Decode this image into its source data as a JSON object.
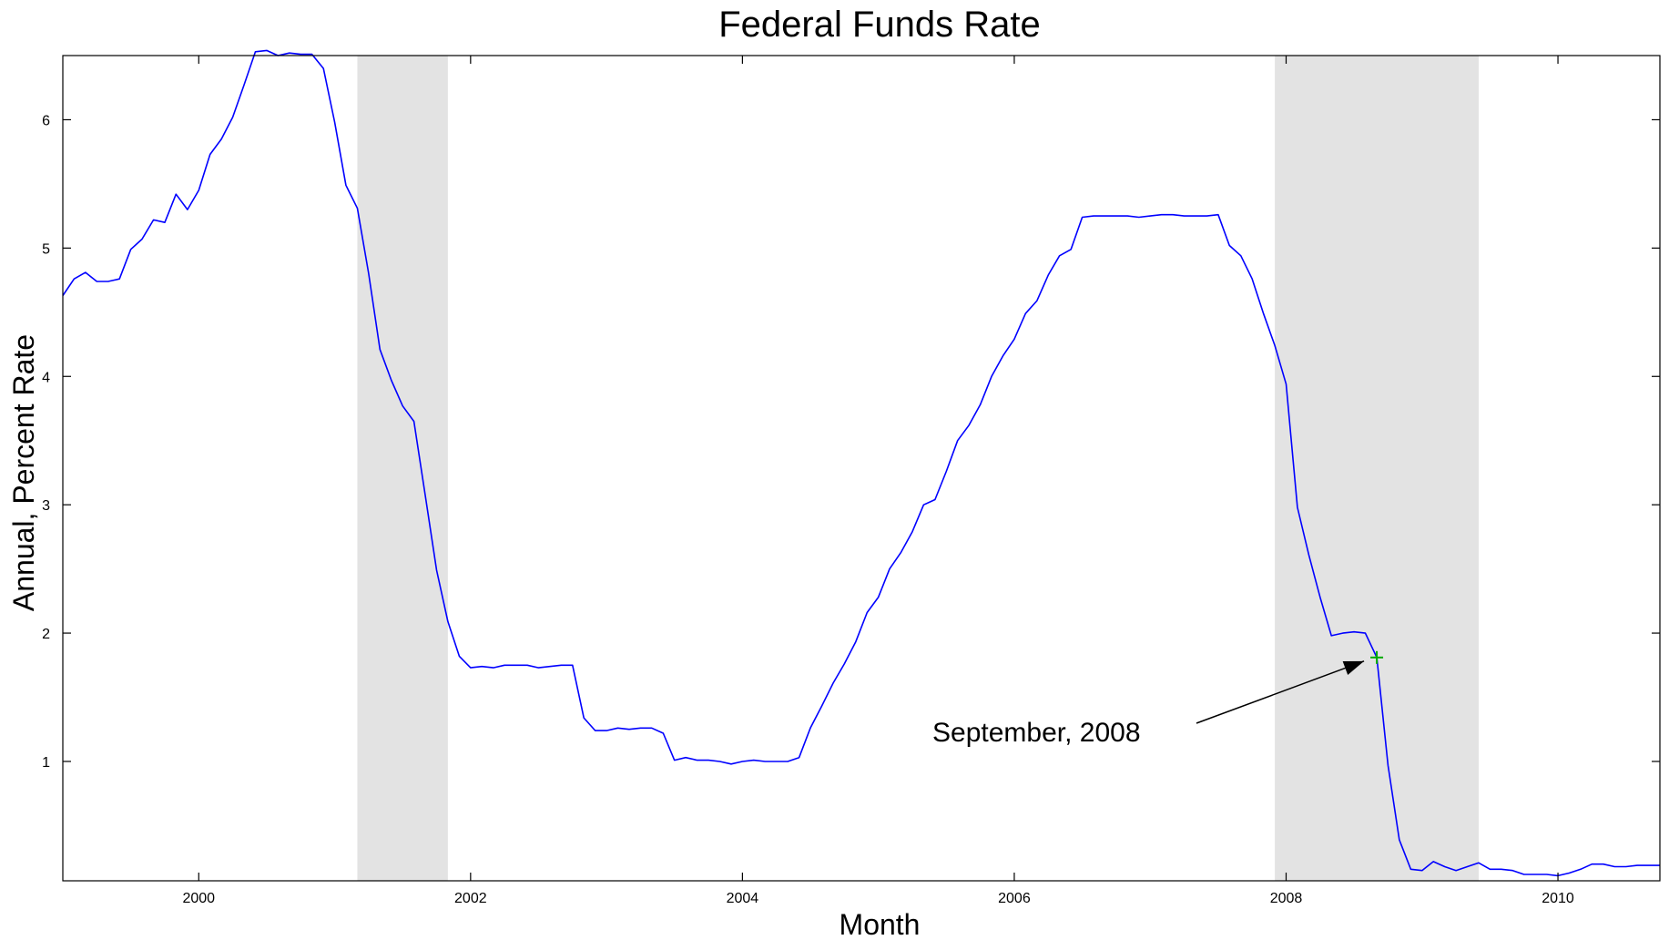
{
  "chart_data": {
    "type": "line",
    "title": "Federal Funds Rate",
    "xlabel": "Month",
    "ylabel": "Annual, Percent Rate",
    "xlim": [
      1999.0,
      2010.75
    ],
    "ylim": [
      0.07,
      6.5
    ],
    "x_ticks": [
      2000,
      2002,
      2004,
      2006,
      2008,
      2010
    ],
    "y_ticks": [
      1,
      2,
      3,
      4,
      5,
      6
    ],
    "grid": false,
    "line_color": "#0000ff",
    "shade_color": "#e3e3e3",
    "recession_shading": [
      [
        2001.167,
        2001.833
      ],
      [
        2007.917,
        2009.417
      ]
    ],
    "series": [
      {
        "x": [
          1999.0,
          1999.083,
          1999.167,
          1999.25,
          1999.333,
          1999.417,
          1999.5,
          1999.583,
          1999.667,
          1999.75,
          1999.833,
          1999.917,
          2000.0,
          2000.083,
          2000.167,
          2000.25,
          2000.333,
          2000.417,
          2000.5,
          2000.583,
          2000.667,
          2000.75,
          2000.833,
          2000.917,
          2001.0,
          2001.083,
          2001.167,
          2001.25,
          2001.333,
          2001.417,
          2001.5,
          2001.583,
          2001.667,
          2001.75,
          2001.833,
          2001.917,
          2002.0,
          2002.083,
          2002.167,
          2002.25,
          2002.333,
          2002.417,
          2002.5,
          2002.583,
          2002.667,
          2002.75,
          2002.833,
          2002.917,
          2003.0,
          2003.083,
          2003.167,
          2003.25,
          2003.333,
          2003.417,
          2003.5,
          2003.583,
          2003.667,
          2003.75,
          2003.833,
          2003.917,
          2004.0,
          2004.083,
          2004.167,
          2004.25,
          2004.333,
          2004.417,
          2004.5,
          2004.583,
          2004.667,
          2004.75,
          2004.833,
          2004.917,
          2005.0,
          2005.083,
          2005.167,
          2005.25,
          2005.333,
          2005.417,
          2005.5,
          2005.583,
          2005.667,
          2005.75,
          2005.833,
          2005.917,
          2006.0,
          2006.083,
          2006.167,
          2006.25,
          2006.333,
          2006.417,
          2006.5,
          2006.583,
          2006.667,
          2006.75,
          2006.833,
          2006.917,
          2007.0,
          2007.083,
          2007.167,
          2007.25,
          2007.333,
          2007.417,
          2007.5,
          2007.583,
          2007.667,
          2007.75,
          2007.833,
          2007.917,
          2008.0,
          2008.083,
          2008.167,
          2008.25,
          2008.333,
          2008.417,
          2008.5,
          2008.583,
          2008.667,
          2008.75,
          2008.833,
          2008.917,
          2009.0,
          2009.083,
          2009.167,
          2009.25,
          2009.333,
          2009.417,
          2009.5,
          2009.583,
          2009.667,
          2009.75,
          2009.833,
          2009.917,
          2010.0,
          2010.083,
          2010.167,
          2010.25,
          2010.333,
          2010.417,
          2010.5,
          2010.583,
          2010.667,
          2010.75
        ],
        "y": [
          4.63,
          4.76,
          4.81,
          4.74,
          4.74,
          4.76,
          4.99,
          5.07,
          5.22,
          5.2,
          5.42,
          5.3,
          5.45,
          5.73,
          5.85,
          6.02,
          6.27,
          6.53,
          6.54,
          6.5,
          6.52,
          6.51,
          6.51,
          6.4,
          5.98,
          5.49,
          5.31,
          4.8,
          4.21,
          3.97,
          3.77,
          3.65,
          3.07,
          2.49,
          2.09,
          1.82,
          1.73,
          1.74,
          1.73,
          1.75,
          1.75,
          1.75,
          1.73,
          1.74,
          1.75,
          1.75,
          1.34,
          1.24,
          1.24,
          1.26,
          1.25,
          1.26,
          1.26,
          1.22,
          1.01,
          1.03,
          1.01,
          1.01,
          1.0,
          0.98,
          1.0,
          1.01,
          1.0,
          1.0,
          1.0,
          1.03,
          1.26,
          1.43,
          1.61,
          1.76,
          1.93,
          2.16,
          2.28,
          2.5,
          2.63,
          2.79,
          3.0,
          3.04,
          3.26,
          3.5,
          3.62,
          3.78,
          4.0,
          4.16,
          4.29,
          4.49,
          4.59,
          4.79,
          4.94,
          4.99,
          5.24,
          5.25,
          5.25,
          5.25,
          5.25,
          5.24,
          5.25,
          5.26,
          5.26,
          5.25,
          5.25,
          5.25,
          5.26,
          5.02,
          4.94,
          4.76,
          4.49,
          4.24,
          3.94,
          2.98,
          2.61,
          2.28,
          1.98,
          2.0,
          2.01,
          2.0,
          1.81,
          0.97,
          0.39,
          0.16,
          0.15,
          0.22,
          0.18,
          0.15,
          0.18,
          0.21,
          0.16,
          0.16,
          0.15,
          0.12,
          0.12,
          0.12,
          0.11,
          0.13,
          0.16,
          0.2,
          0.2,
          0.18,
          0.18,
          0.19,
          0.19,
          0.19
        ]
      }
    ],
    "highlight_point": {
      "x": 2008.667,
      "y": 1.81,
      "color": "#00aa00",
      "marker": "+"
    },
    "annotation": {
      "text": "September, 2008",
      "arrow_to_x": 2008.667,
      "arrow_to_y": 1.81
    }
  }
}
